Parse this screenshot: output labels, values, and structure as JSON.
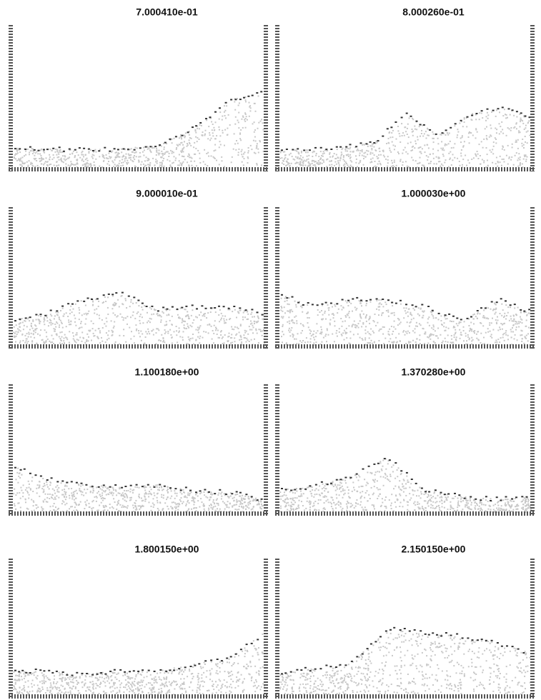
{
  "panels": [
    {
      "title": "7.000410e-01"
    },
    {
      "title": "8.000260e-01"
    },
    {
      "title": "9.000010e-01"
    },
    {
      "title": "1.000030e+00"
    },
    {
      "title": "1.100180e+00"
    },
    {
      "title": "1.370280e+00"
    },
    {
      "title": "1.800150e+00"
    },
    {
      "title": "2.150150e+00"
    }
  ]
}
